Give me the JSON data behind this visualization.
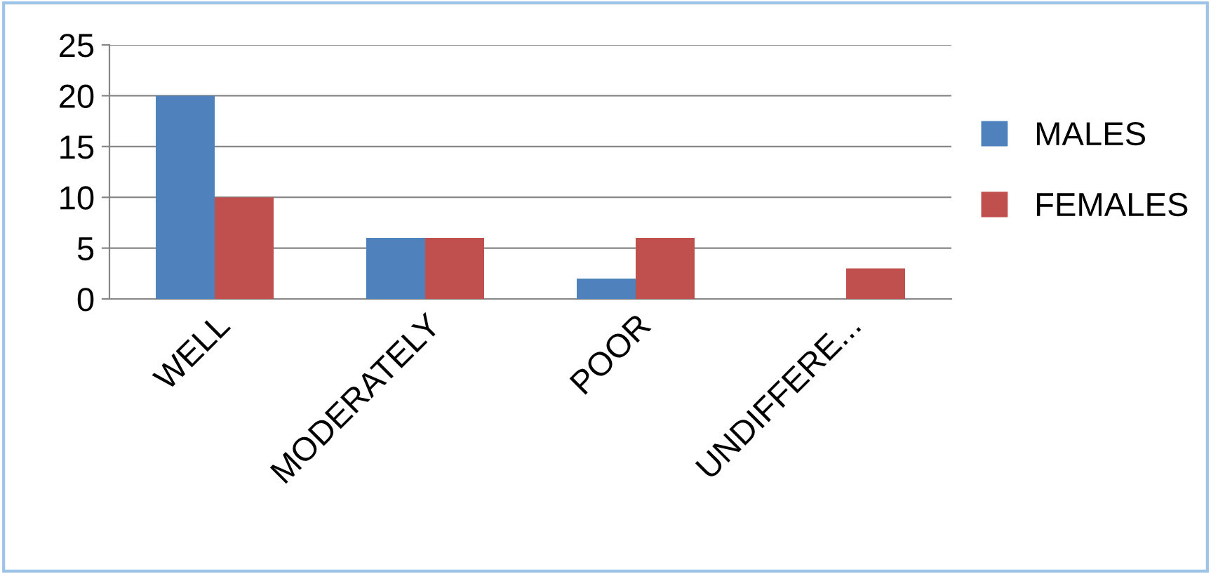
{
  "chart_data": {
    "type": "bar",
    "categories": [
      "WELL",
      "MODERATELY",
      "POOR",
      "UNDIFFERE..."
    ],
    "series": [
      {
        "name": "MALES",
        "color": "#4f81bd",
        "values": [
          20,
          6,
          2,
          0
        ]
      },
      {
        "name": "FEMALES",
        "color": "#c0504d",
        "values": [
          10,
          6,
          6,
          3
        ]
      }
    ],
    "ylim": [
      0,
      25
    ],
    "yticks": [
      0,
      5,
      10,
      15,
      20,
      25
    ],
    "grid": "y",
    "legend": "right"
  }
}
